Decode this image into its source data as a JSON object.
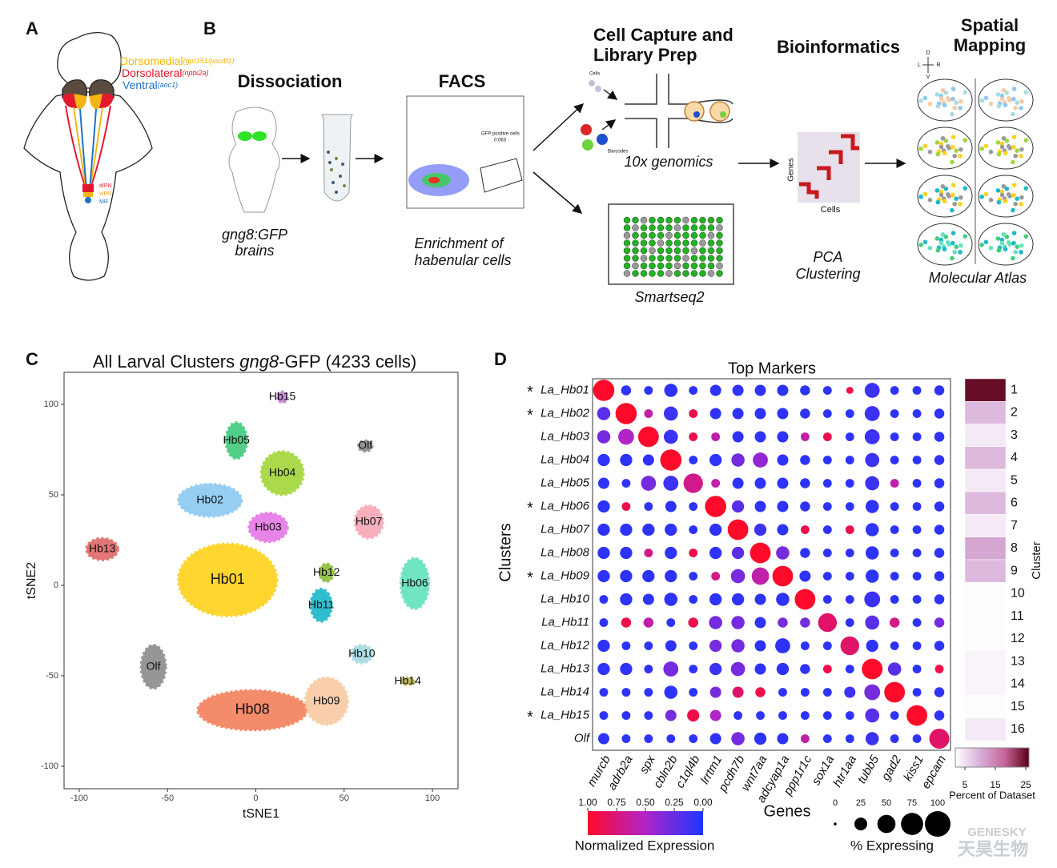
{
  "panel_labels": [
    "A",
    "B",
    "C",
    "D"
  ],
  "panel_A": {
    "dorsomedial": "Dorsomedial",
    "dorsomedial_genes": "(gpr151/pou4f1)",
    "dorsolateral": "Dorsolateral",
    "dorsolateral_genes": "(nptx2a)",
    "ventral": "Ventral",
    "ventral_genes": "(aoc1)",
    "targets": [
      "dIPN",
      "vIPN",
      "MR"
    ]
  },
  "panel_B": {
    "steps": [
      "Dissociation",
      "FACS",
      "Cell Capture and",
      "Library Prep",
      "Bioinformatics",
      "Spatial",
      "Mapping"
    ],
    "captions": [
      "gng8:GFP",
      "brains",
      "Enrichment of",
      "habenular cells",
      "10x genomics",
      "Smartseq2",
      "PCA",
      "Clustering",
      "Molecular Atlas"
    ],
    "facs_gate": "GFP positive cells",
    "facs_fraction": "0.063",
    "chip_cells": "Cells",
    "chip_barcodes": "Barcodes",
    "heatmap_y": "Genes",
    "heatmap_x": "Cells",
    "axes": [
      "D",
      "L",
      "R",
      "V"
    ]
  },
  "chart_data": [
    {
      "type": "scatter",
      "title": [
        "All Larval Clusters ",
        "gng8",
        "-GFP (4233 cells)"
      ],
      "xlabel": "tSNE1",
      "ylabel": "tSNE2",
      "xlim": [
        -108.6,
        114.5
      ],
      "ylim": [
        -112.4,
        117.7
      ],
      "xticks": [
        -100,
        -50,
        0,
        50,
        100
      ],
      "yticks": [
        100,
        50,
        0,
        -50,
        -100
      ],
      "clusters": [
        {
          "name": "Hb01",
          "color": "#ffd21f",
          "x": -16,
          "y": 3,
          "rx": 28,
          "ry": 20
        },
        {
          "name": "Hb02",
          "color": "#8ec9f2",
          "x": -26,
          "y": 47,
          "rx": 18,
          "ry": 9
        },
        {
          "name": "Hb03",
          "color": "#e57ae6",
          "x": 7,
          "y": 32,
          "rx": 11,
          "ry": 8
        },
        {
          "name": "Hb04",
          "color": "#a3d63c",
          "x": 15,
          "y": 62,
          "rx": 12,
          "ry": 12
        },
        {
          "name": "Hb05",
          "color": "#43cc80",
          "x": -11,
          "y": 80,
          "rx": 6,
          "ry": 10
        },
        {
          "name": "Hb06",
          "color": "#66e2bd",
          "x": 90,
          "y": 1,
          "rx": 8,
          "ry": 14
        },
        {
          "name": "Hb07",
          "color": "#f6a9b6",
          "x": 64,
          "y": 35,
          "rx": 8,
          "ry": 9
        },
        {
          "name": "Hb08",
          "color": "#f4825f",
          "x": -2,
          "y": -69,
          "rx": 31,
          "ry": 11
        },
        {
          "name": "Hb09",
          "color": "#f9caa3",
          "x": 40,
          "y": -64,
          "rx": 12,
          "ry": 13
        },
        {
          "name": "Hb10",
          "color": "#a8dce2",
          "x": 60,
          "y": -38,
          "rx": 6,
          "ry": 5
        },
        {
          "name": "Hb11",
          "color": "#1fb8c9",
          "x": 37,
          "y": -11,
          "rx": 6,
          "ry": 9
        },
        {
          "name": "Hb12",
          "color": "#8fbd3d",
          "x": 40,
          "y": 7,
          "rx": 4,
          "ry": 5
        },
        {
          "name": "Hb13",
          "color": "#e06b6b",
          "x": -87,
          "y": 20,
          "rx": 9,
          "ry": 6
        },
        {
          "name": "Hb14",
          "color": "#bbb556",
          "x": 86,
          "y": -53,
          "rx": 4,
          "ry": 2
        },
        {
          "name": "Hb15",
          "color": "#c77dd9",
          "x": 15,
          "y": 104,
          "rx": 3,
          "ry": 3
        },
        {
          "name": "Olf",
          "color": "#8e8e8e",
          "x": -58,
          "y": -45,
          "rx": 7,
          "ry": 12
        },
        {
          "name": "Olf",
          "color": "#8e8e8e",
          "x": 62,
          "y": 77,
          "rx": 4,
          "ry": 3
        }
      ]
    },
    {
      "type": "dot",
      "title": "Top Markers",
      "xlabel": "Genes",
      "ylabel": "Clusters",
      "marker_symbol": "*",
      "rows": [
        "La_Hb01",
        "La_Hb02",
        "La_Hb03",
        "La_Hb04",
        "La_Hb05",
        "La_Hb06",
        "La_Hb07",
        "La_Hb08",
        "La_Hb09",
        "La_Hb10",
        "La_Hb11",
        "La_Hb12",
        "La_Hb13",
        "La_Hb14",
        "La_Hb15",
        "Olf"
      ],
      "marked": [
        true,
        true,
        false,
        false,
        false,
        true,
        false,
        false,
        true,
        false,
        false,
        false,
        false,
        false,
        true,
        false
      ],
      "columns": [
        "murcb",
        "adrb2a",
        "spx",
        "cbln2b",
        "c1ql4b",
        "lrrtm1",
        "pcdh7b",
        "wnt7aa",
        "adcyap1a",
        "ppp1r1c",
        "sox1a",
        "htr1aa",
        "tubb5",
        "gad2",
        "kiss1",
        "epcam"
      ],
      "expression": [
        [
          1,
          0.05,
          0.05,
          0.05,
          0.05,
          0.05,
          0.05,
          0.05,
          0.05,
          0.05,
          0.05,
          0.9,
          0.1,
          0.05,
          0.05,
          0.05
        ],
        [
          0.2,
          1,
          0.6,
          0.1,
          0.9,
          0.05,
          0.05,
          0.05,
          0.05,
          0.05,
          0.05,
          0.05,
          0.1,
          0.05,
          0.05,
          0.05
        ],
        [
          0.3,
          0.5,
          1,
          0.1,
          0.9,
          0.6,
          0.05,
          0.05,
          0.05,
          0.6,
          0.9,
          0.05,
          0.1,
          0.05,
          0.05,
          0.05
        ],
        [
          0.05,
          0.05,
          0.05,
          1,
          0.05,
          0.05,
          0.3,
          0.4,
          0.05,
          0.05,
          0.05,
          0.05,
          0.1,
          0.05,
          0.05,
          0.05
        ],
        [
          0.05,
          0.05,
          0.3,
          0.1,
          0.7,
          0.6,
          0.05,
          0.05,
          0.05,
          0.05,
          0.05,
          0.05,
          0.1,
          0.6,
          0.05,
          0.05
        ],
        [
          0.05,
          0.9,
          0.05,
          0.05,
          0.05,
          1,
          0.2,
          0.05,
          0.05,
          0.05,
          0.05,
          0.05,
          0.05,
          0.05,
          0.05,
          0.05
        ],
        [
          0.05,
          0.05,
          0.05,
          0.05,
          0.05,
          0.05,
          1,
          0.1,
          0.05,
          0.9,
          0.05,
          0.9,
          0.05,
          0.05,
          0.05,
          0.05
        ],
        [
          0.05,
          0.05,
          0.7,
          0.05,
          0.9,
          0.05,
          0.2,
          1,
          0.3,
          0.05,
          0.05,
          0.05,
          0.05,
          0.05,
          0.05,
          0.05
        ],
        [
          0.05,
          0.05,
          0.05,
          0.05,
          0.05,
          0.7,
          0.3,
          0.6,
          1,
          0.05,
          0.05,
          0.05,
          0.05,
          0.05,
          0.05,
          0.05
        ],
        [
          0.05,
          0.05,
          0.05,
          0.05,
          0.05,
          0.05,
          0.05,
          0.05,
          0.05,
          1,
          0.05,
          0.05,
          0.1,
          0.05,
          0.05,
          0.05
        ],
        [
          0.05,
          0.9,
          0.6,
          0.05,
          0.9,
          0.3,
          0.3,
          0.05,
          0.3,
          0.3,
          0.8,
          0.05,
          0.2,
          0.7,
          0.05,
          0.3
        ],
        [
          0.05,
          0.05,
          0.05,
          0.05,
          0.05,
          0.3,
          0.3,
          0.05,
          0.05,
          0.05,
          0.05,
          0.8,
          0.05,
          0.05,
          0.05,
          0.05
        ],
        [
          0.05,
          0.05,
          0.05,
          0.3,
          0.05,
          0.1,
          0.3,
          0.05,
          0.05,
          0.05,
          0.9,
          0.05,
          1,
          0.2,
          0.05,
          0.9
        ],
        [
          0.05,
          0.05,
          0.05,
          0.05,
          0.05,
          0.3,
          0.8,
          0.9,
          0.05,
          0.05,
          0.05,
          0.1,
          0.3,
          1,
          0.05,
          0.05
        ],
        [
          0.05,
          0.05,
          0.05,
          0.3,
          0.9,
          0.5,
          0.05,
          0.05,
          0.05,
          0.05,
          0.05,
          0.05,
          0.2,
          0.05,
          1,
          0.05
        ],
        [
          0.05,
          0.05,
          0.05,
          0.05,
          0.05,
          0.05,
          0.3,
          0.05,
          0.05,
          0.6,
          0.05,
          0.05,
          0.1,
          0.05,
          0.05,
          0.8
        ]
      ],
      "percent": [
        [
          90,
          20,
          15,
          35,
          15,
          25,
          25,
          25,
          25,
          20,
          15,
          10,
          45,
          15,
          15,
          20
        ],
        [
          35,
          90,
          15,
          40,
          15,
          25,
          25,
          25,
          25,
          20,
          15,
          15,
          45,
          15,
          15,
          20
        ],
        [
          35,
          50,
          85,
          40,
          15,
          15,
          25,
          25,
          25,
          15,
          15,
          15,
          45,
          15,
          15,
          20
        ],
        [
          30,
          30,
          25,
          90,
          15,
          30,
          35,
          45,
          25,
          20,
          15,
          15,
          40,
          15,
          15,
          20
        ],
        [
          25,
          15,
          45,
          45,
          75,
          15,
          25,
          25,
          25,
          20,
          15,
          15,
          40,
          15,
          15,
          20
        ],
        [
          30,
          15,
          15,
          25,
          15,
          90,
          30,
          25,
          25,
          20,
          15,
          15,
          35,
          15,
          15,
          20
        ],
        [
          30,
          30,
          30,
          30,
          15,
          30,
          85,
          30,
          25,
          15,
          15,
          15,
          35,
          15,
          15,
          20
        ],
        [
          30,
          30,
          15,
          30,
          15,
          30,
          30,
          85,
          35,
          20,
          15,
          15,
          35,
          15,
          15,
          20
        ],
        [
          30,
          30,
          30,
          30,
          15,
          15,
          40,
          60,
          85,
          25,
          15,
          15,
          35,
          15,
          15,
          20
        ],
        [
          15,
          30,
          25,
          35,
          15,
          30,
          30,
          25,
          35,
          85,
          15,
          15,
          50,
          15,
          15,
          20
        ],
        [
          15,
          20,
          20,
          15,
          20,
          35,
          35,
          25,
          20,
          20,
          70,
          15,
          40,
          20,
          15,
          20
        ],
        [
          30,
          15,
          15,
          25,
          15,
          30,
          35,
          25,
          45,
          15,
          15,
          70,
          30,
          15,
          15,
          20
        ],
        [
          30,
          30,
          15,
          45,
          15,
          30,
          40,
          25,
          30,
          20,
          15,
          15,
          85,
          35,
          15,
          15
        ],
        [
          15,
          15,
          15,
          35,
          15,
          25,
          25,
          20,
          15,
          15,
          15,
          25,
          50,
          85,
          15,
          20
        ],
        [
          15,
          15,
          15,
          25,
          30,
          25,
          15,
          15,
          15,
          15,
          15,
          15,
          40,
          15,
          85,
          20
        ],
        [
          25,
          15,
          15,
          15,
          15,
          25,
          35,
          30,
          25,
          15,
          15,
          15,
          35,
          15,
          15,
          80
        ]
      ],
      "colors": [
        "#ff0a2a",
        "#b024c8",
        "#1f35ff"
      ],
      "colorbar_label": "Normalized Expression",
      "colorbar_lim": [
        1,
        0
      ],
      "colorbar_ticks": [
        {
          "value": 1,
          "label": "1.00"
        },
        {
          "value": 0.75,
          "label": "0.75"
        },
        {
          "value": 0.5,
          "label": "0.50"
        },
        {
          "value": 0.25,
          "label": "0.25"
        },
        {
          "value": 0,
          "label": "0.00"
        }
      ],
      "size_label": "% Expressing",
      "size_ticks": [
        0,
        25,
        50,
        75,
        100
      ]
    },
    {
      "type": "heatmap",
      "ylabel": "Cluster",
      "categories": [
        "1",
        "2",
        "3",
        "4",
        "5",
        "6",
        "7",
        "8",
        "9",
        "10",
        "11",
        "12",
        "13",
        "14",
        "15",
        "16"
      ],
      "values": [
        25,
        9,
        4,
        9,
        4,
        9,
        4,
        11,
        9,
        2,
        2,
        2,
        3,
        3,
        2,
        4
      ],
      "colors": [
        "#ffffff",
        "#d7b0d9",
        "#c7669b",
        "#5a0014"
      ],
      "clim": [
        1.84,
        26.05
      ],
      "colorbar_ticks": [
        5,
        15,
        25
      ],
      "colorbar_label": "Percent of Dataset"
    }
  ],
  "watermark": [
    "GENESKY",
    "天昊生物"
  ]
}
